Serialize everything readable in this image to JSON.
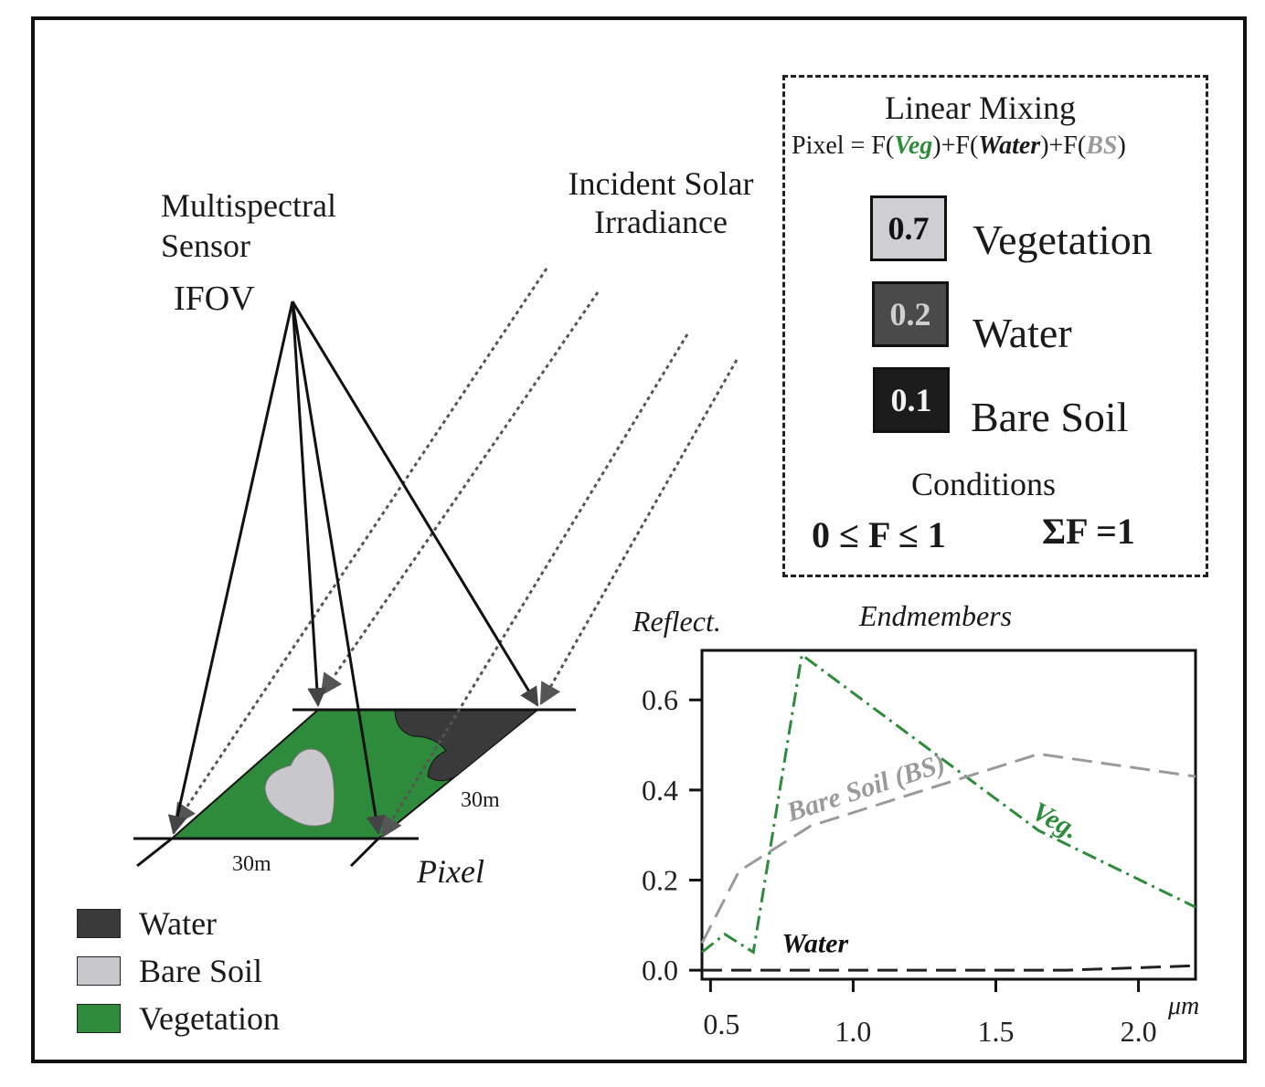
{
  "sensor_label": "Multispectral Sensor",
  "ifov_label": "IFOV",
  "solar_label": "Incident Solar Irradiance",
  "pixel_side_a": "30m",
  "pixel_side_b": "30m",
  "pixel_label": "Pixel",
  "legend": [
    {
      "label": "Water",
      "color": "#3a3a3a"
    },
    {
      "label": "Bare Soil",
      "color": "#c8c8cc"
    },
    {
      "label": "Vegetation",
      "color": "#2e8b3c"
    }
  ],
  "mixing": {
    "title": "Linear Mixing",
    "eq_prefix": "Pixel = F(",
    "eq_veg": "Veg",
    "eq_mid1": ")+F(",
    "eq_water": "Water",
    "eq_mid2": ")+F(",
    "eq_bs": "BS",
    "eq_suffix": ")",
    "fractions": [
      {
        "value": "0.7",
        "label": "Vegetation"
      },
      {
        "value": "0.2",
        "label": "Water"
      },
      {
        "value": "0.1",
        "label": "Bare Soil"
      }
    ],
    "conditions_title": "Conditions",
    "condition_1": "0 ≤ F ≤ 1",
    "condition_2": "ΣF =1"
  },
  "chart_data": {
    "type": "line",
    "title": "Endmembers",
    "ylabel": "Reflect.",
    "xlabel": "μm",
    "xlim": [
      0.47,
      2.2
    ],
    "ylim": [
      -0.02,
      0.71
    ],
    "x_ticks": [
      "0.5",
      "1.0",
      "1.5",
      "2.0"
    ],
    "y_ticks": [
      "0.0",
      "0.2",
      "0.4",
      "0.6"
    ],
    "series": [
      {
        "name": "Veg.",
        "color": "#2e8b3c",
        "dash": "dashdot",
        "x": [
          0.47,
          0.55,
          0.65,
          0.82,
          1.65,
          2.2
        ],
        "y": [
          0.04,
          0.08,
          0.04,
          0.7,
          0.31,
          0.14
        ]
      },
      {
        "name": "Bare Soil (BS)",
        "color": "#9a9a9a",
        "dash": "dashed",
        "x": [
          0.47,
          0.6,
          0.85,
          1.35,
          1.65,
          2.2
        ],
        "y": [
          0.06,
          0.22,
          0.32,
          0.42,
          0.48,
          0.43
        ]
      },
      {
        "name": "Water",
        "color": "#222222",
        "dash": "dashed",
        "x": [
          0.47,
          1.0,
          1.75,
          2.2
        ],
        "y": [
          0.0,
          0.0,
          0.0,
          0.01
        ]
      }
    ]
  }
}
